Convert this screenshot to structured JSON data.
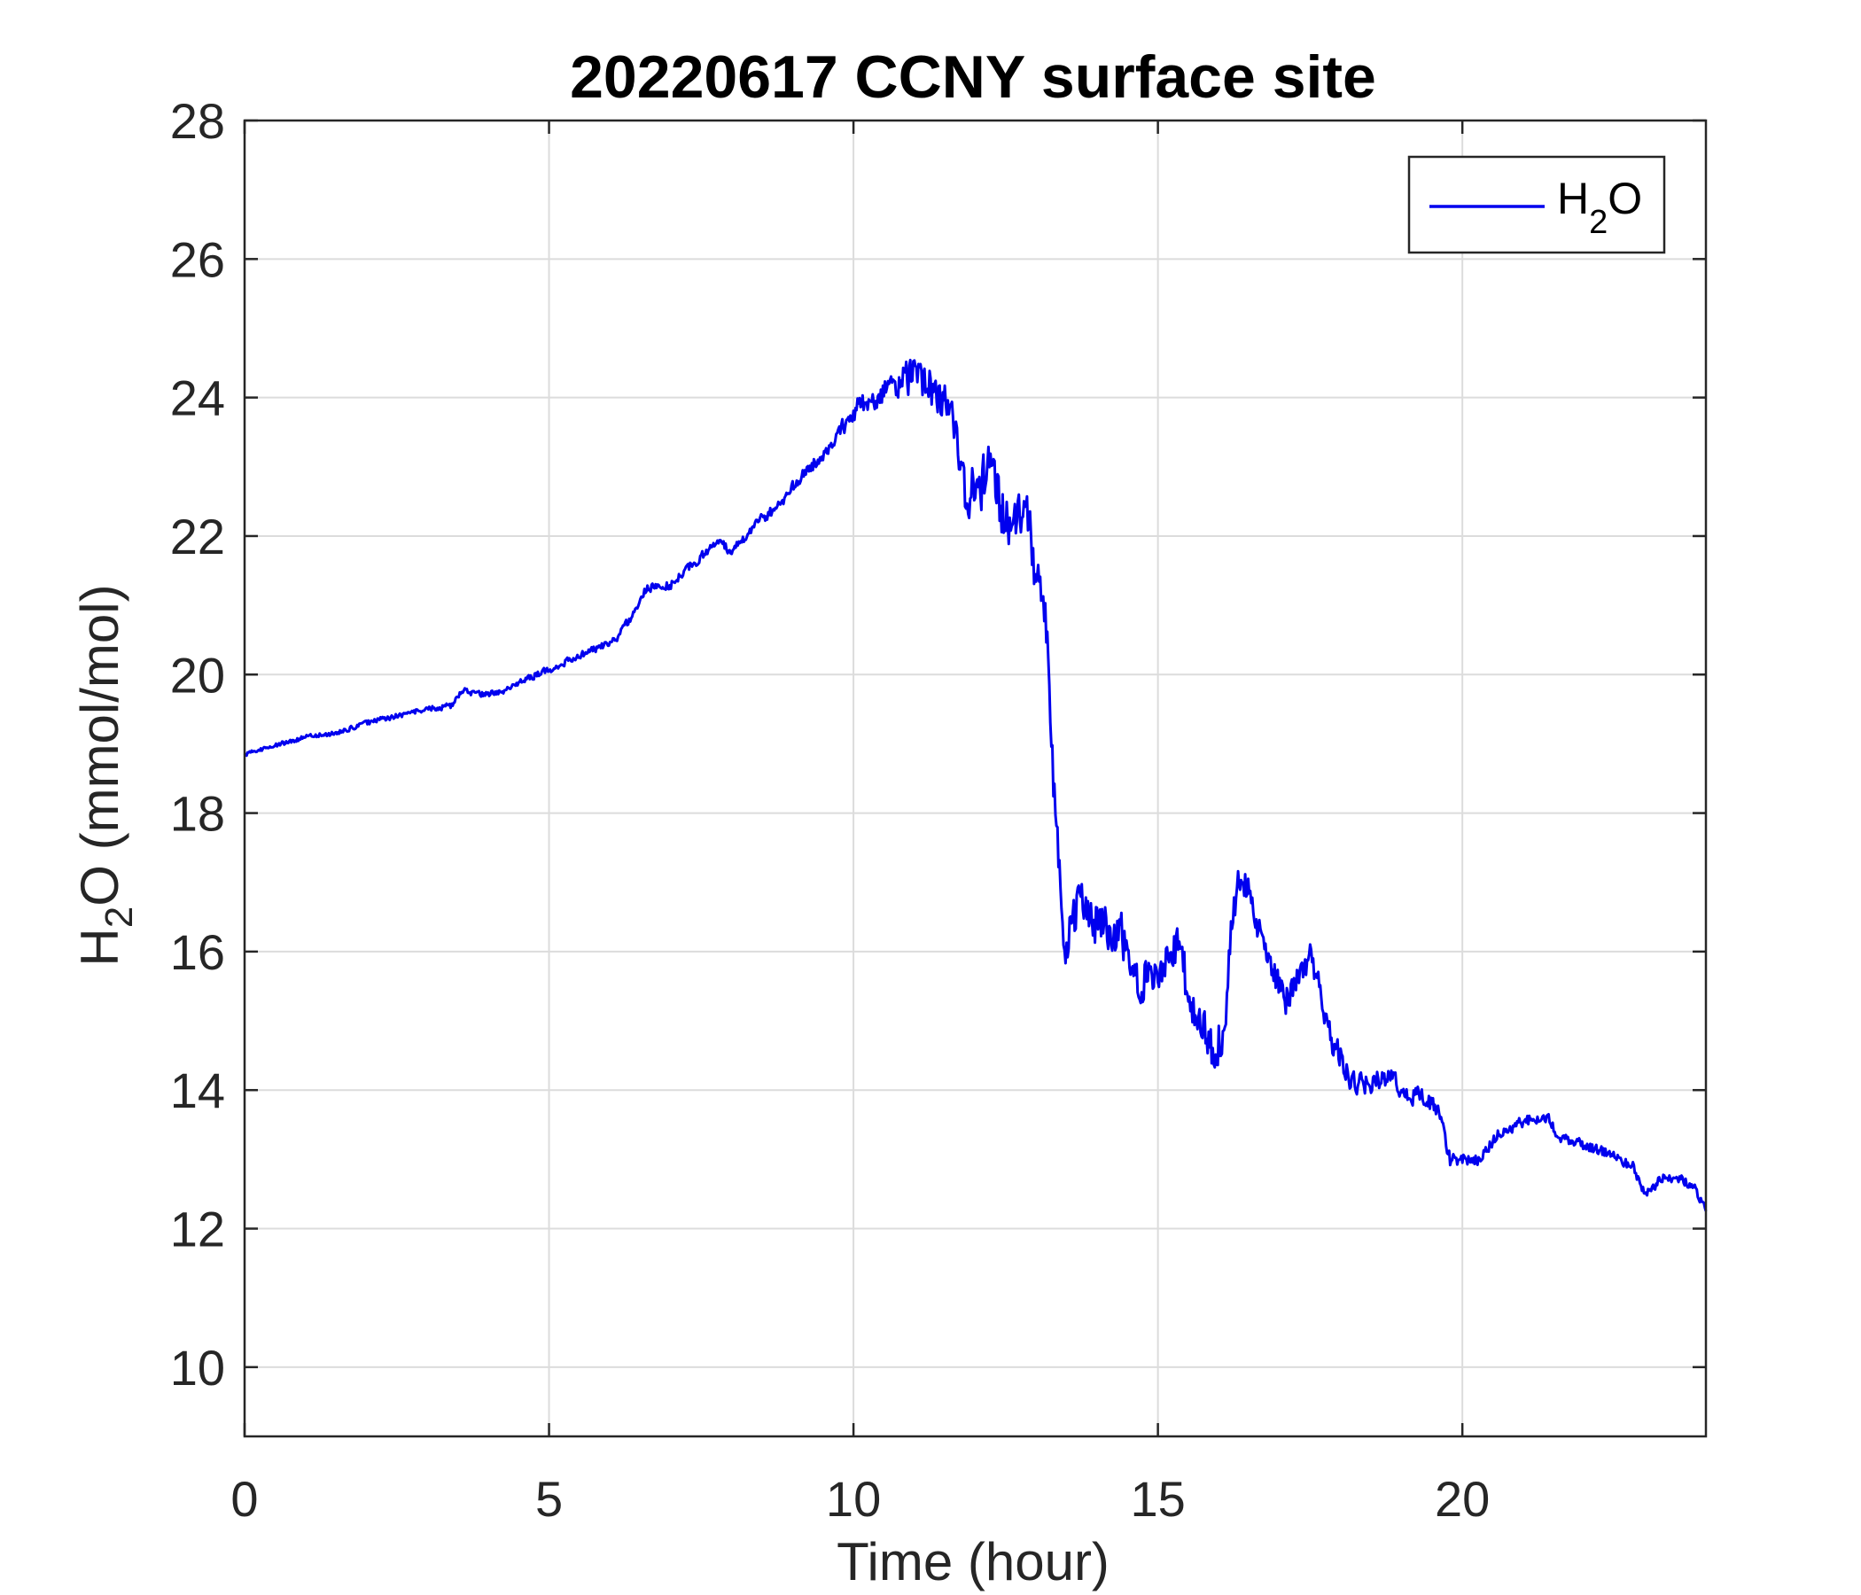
{
  "chart_data": {
    "type": "line",
    "title": "20220617 CCNY surface site",
    "xlabel": "Time (hour)",
    "ylabel": {
      "main": "H",
      "sub": "2",
      "rest": "O (mmol/mol)"
    },
    "xlim": [
      0,
      24
    ],
    "ylim": [
      9,
      28
    ],
    "xticks": [
      0,
      5,
      10,
      15,
      20
    ],
    "yticks": [
      10,
      12,
      14,
      16,
      18,
      20,
      22,
      24,
      26,
      28
    ],
    "grid": true,
    "legend": {
      "placement": "top-right",
      "main": "H",
      "sub": "2",
      "rest": "O"
    },
    "colors": {
      "series": "#0000ee",
      "axes": "#262626",
      "grid": "#dcdcdc"
    },
    "series": [
      {
        "name": "H2O",
        "noise": [
          [
            0,
            0.03
          ],
          [
            3.3,
            0.04
          ],
          [
            5.5,
            0.05
          ],
          [
            8,
            0.07
          ],
          [
            9.5,
            0.1
          ],
          [
            10.3,
            0.18
          ],
          [
            11.7,
            0.35
          ],
          [
            12.5,
            0.4
          ],
          [
            13.1,
            0.4
          ],
          [
            13.5,
            0.35
          ],
          [
            16,
            0.3
          ],
          [
            16.5,
            0.2
          ],
          [
            17.6,
            0.2
          ],
          [
            18,
            0.18
          ],
          [
            19.5,
            0.12
          ],
          [
            20,
            0.08
          ],
          [
            24,
            0.07
          ]
        ],
        "points": [
          [
            0,
            18.85
          ],
          [
            0.4,
            18.95
          ],
          [
            1,
            19.1
          ],
          [
            1.5,
            19.15
          ],
          [
            2,
            19.3
          ],
          [
            2.5,
            19.4
          ],
          [
            3,
            19.5
          ],
          [
            3.4,
            19.55
          ],
          [
            3.6,
            19.8
          ],
          [
            3.8,
            19.7
          ],
          [
            4.2,
            19.75
          ],
          [
            4.8,
            20.0
          ],
          [
            5.2,
            20.15
          ],
          [
            5.7,
            20.35
          ],
          [
            6.1,
            20.5
          ],
          [
            6.4,
            20.9
          ],
          [
            6.6,
            21.25
          ],
          [
            7,
            21.3
          ],
          [
            7.5,
            21.7
          ],
          [
            7.8,
            21.95
          ],
          [
            8.0,
            21.75
          ],
          [
            8.3,
            22.1
          ],
          [
            8.7,
            22.4
          ],
          [
            9.2,
            22.9
          ],
          [
            9.7,
            23.4
          ],
          [
            10.0,
            23.8
          ],
          [
            10.3,
            24.0
          ],
          [
            10.7,
            24.15
          ],
          [
            11.0,
            24.3
          ],
          [
            11.3,
            24.1
          ],
          [
            11.5,
            24.0
          ],
          [
            11.7,
            23.6
          ],
          [
            11.85,
            22.4
          ],
          [
            12.0,
            22.8
          ],
          [
            12.1,
            22.7
          ],
          [
            12.2,
            23.1
          ],
          [
            12.3,
            22.7
          ],
          [
            12.5,
            22.3
          ],
          [
            12.7,
            22.2
          ],
          [
            12.8,
            22.5
          ],
          [
            12.9,
            22.2
          ],
          [
            13.0,
            21.0
          ],
          [
            13.1,
            21.4
          ],
          [
            13.2,
            20.0
          ],
          [
            13.3,
            18.1
          ],
          [
            13.4,
            16.8
          ],
          [
            13.5,
            16.1
          ],
          [
            13.7,
            16.6
          ],
          [
            13.9,
            16.5
          ],
          [
            14.1,
            16.3
          ],
          [
            14.3,
            16.3
          ],
          [
            14.5,
            16.1
          ],
          [
            14.7,
            15.5
          ],
          [
            15.0,
            15.8
          ],
          [
            15.2,
            16.1
          ],
          [
            15.4,
            16.0
          ],
          [
            15.5,
            15.2
          ],
          [
            15.7,
            14.9
          ],
          [
            15.9,
            14.6
          ],
          [
            16.1,
            14.9
          ],
          [
            16.2,
            16.3
          ],
          [
            16.35,
            17.1
          ],
          [
            16.5,
            16.9
          ],
          [
            16.7,
            16.2
          ],
          [
            16.9,
            15.7
          ],
          [
            17.1,
            15.3
          ],
          [
            17.3,
            15.6
          ],
          [
            17.5,
            15.9
          ],
          [
            17.7,
            15.3
          ],
          [
            17.85,
            14.7
          ],
          [
            18.0,
            14.5
          ],
          [
            18.2,
            14.1
          ],
          [
            18.5,
            14.1
          ],
          [
            18.8,
            14.2
          ],
          [
            19.1,
            13.95
          ],
          [
            19.4,
            13.9
          ],
          [
            19.6,
            13.7
          ],
          [
            19.8,
            13.0
          ],
          [
            20.0,
            13.0
          ],
          [
            20.3,
            13.0
          ],
          [
            20.6,
            13.4
          ],
          [
            20.9,
            13.5
          ],
          [
            21.2,
            13.6
          ],
          [
            21.4,
            13.6
          ],
          [
            21.6,
            13.3
          ],
          [
            22.0,
            13.2
          ],
          [
            22.4,
            13.1
          ],
          [
            22.8,
            12.9
          ],
          [
            23.0,
            12.5
          ],
          [
            23.3,
            12.75
          ],
          [
            23.6,
            12.7
          ],
          [
            23.8,
            12.6
          ],
          [
            24.0,
            12.3
          ]
        ]
      }
    ]
  }
}
